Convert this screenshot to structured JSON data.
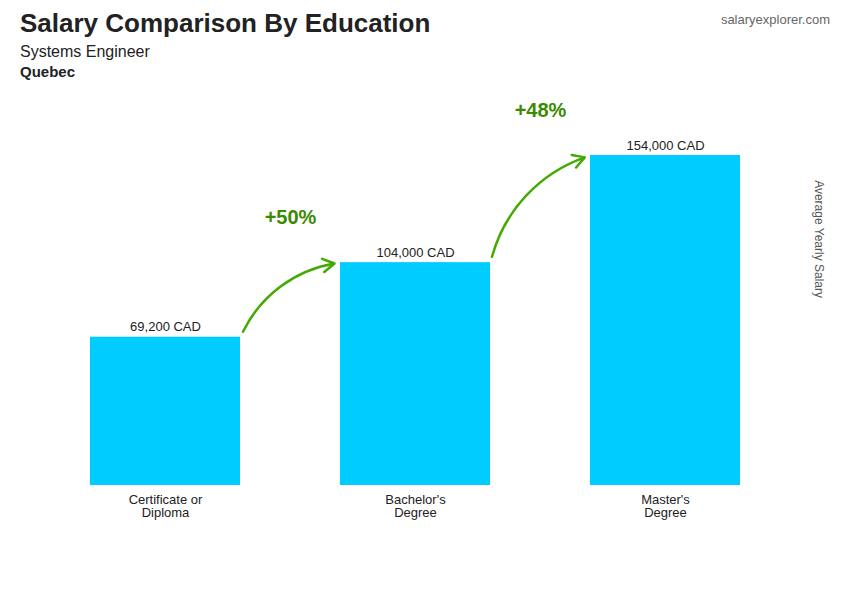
{
  "chart_data": {
    "type": "bar",
    "title": "Salary Comparison By Education",
    "subtitle": "Systems Engineer",
    "location": "Quebec",
    "source": "salaryexplorer.com",
    "y_label": "Average Yearly Salary",
    "categories": [
      "Certificate or\nDiploma",
      "Bachelor's\nDegree",
      "Master's\nDegree"
    ],
    "values": [
      69200,
      104000,
      154000
    ],
    "value_labels": [
      "69,200 CAD",
      "104,000 CAD",
      "154,000 CAD"
    ],
    "data_labels": true,
    "annotations": [
      "+50%",
      "+48%"
    ],
    "color": "#00ccff",
    "ylim": [
      0,
      175000
    ],
    "tick_labels": "x",
    "grid": false
  }
}
